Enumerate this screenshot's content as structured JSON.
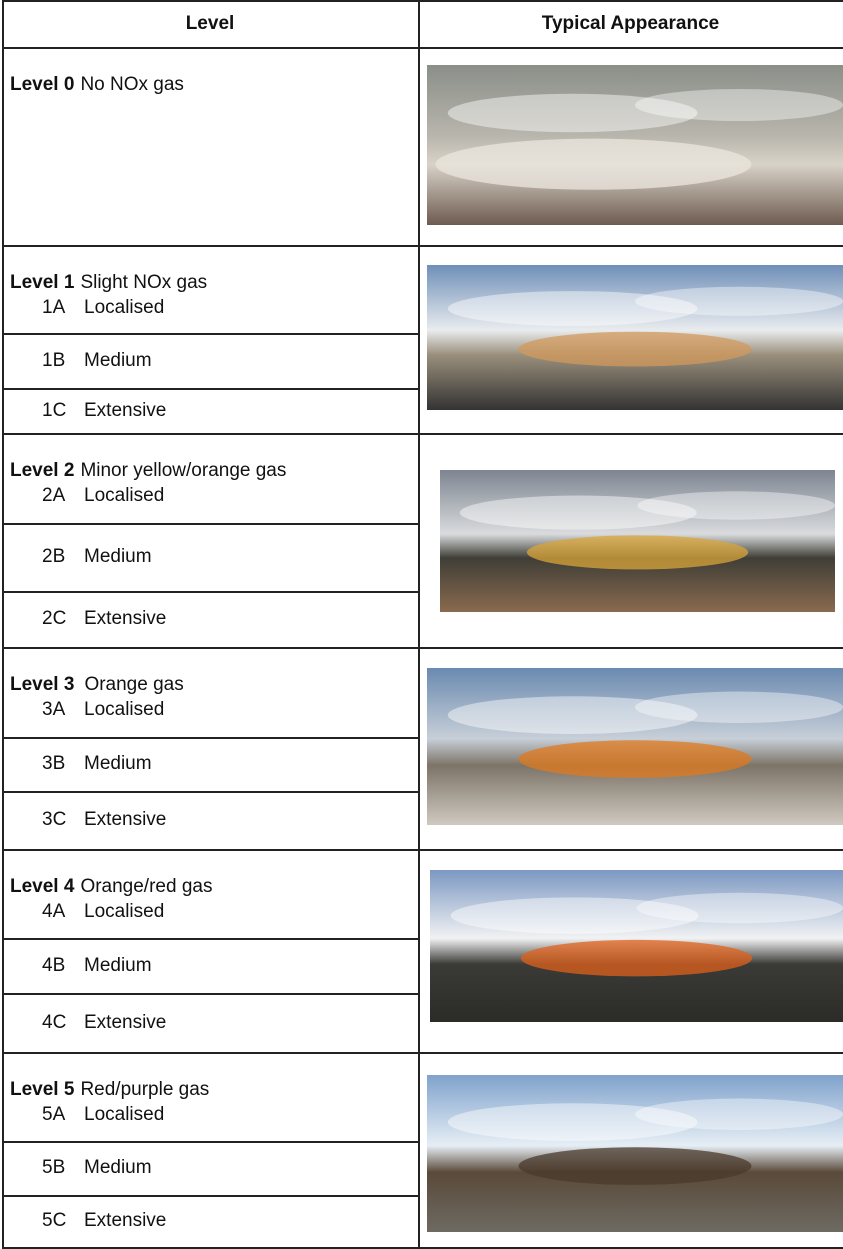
{
  "header": {
    "columns": [
      "Level",
      "Typical Appearance"
    ]
  },
  "rows": [
    {
      "level": "Level 0",
      "description": "No NOx gas"
    },
    {
      "level": "Level 1",
      "description": "Slight NOx gas",
      "sublevels": [
        {
          "code": "1A",
          "name": "Localised"
        },
        {
          "code": "1B",
          "name": "Medium"
        },
        {
          "code": "1C",
          "name": "Extensive"
        }
      ]
    },
    {
      "level": "Level 2",
      "description": "Minor yellow/orange gas",
      "sublevels": [
        {
          "code": "2A",
          "name": "Localised"
        },
        {
          "code": "2B",
          "name": "Medium"
        },
        {
          "code": "2C",
          "name": "Extensive"
        }
      ]
    },
    {
      "level": "Level 3",
      "description": "Orange gas",
      "sublevels": [
        {
          "code": "3A",
          "name": "Localised"
        },
        {
          "code": "3B",
          "name": "Medium"
        },
        {
          "code": "3C",
          "name": "Extensive"
        }
      ]
    },
    {
      "level": "Level 4",
      "description": "Orange/red gas",
      "sublevels": [
        {
          "code": "4A",
          "name": "Localised"
        },
        {
          "code": "4B",
          "name": "Medium"
        },
        {
          "code": "4C",
          "name": "Extensive"
        }
      ]
    },
    {
      "level": "Level 5",
      "description": "Red/purple gas",
      "sublevels": [
        {
          "code": "5A",
          "name": "Localised"
        },
        {
          "code": "5B",
          "name": "Medium"
        },
        {
          "code": "5C",
          "name": "Extensive"
        }
      ]
    }
  ]
}
